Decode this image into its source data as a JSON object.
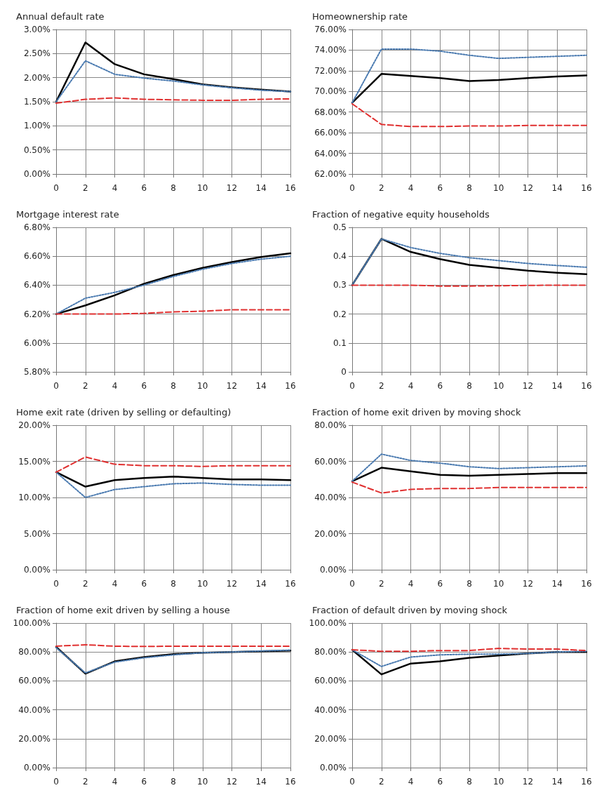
{
  "chart_data": [
    {
      "type": "line",
      "title": "Annual default rate",
      "x": [
        0,
        2,
        4,
        6,
        8,
        10,
        12,
        14,
        16
      ],
      "xlim": [
        0,
        16
      ],
      "xticks": [
        0,
        2,
        4,
        6,
        8,
        10,
        12,
        14,
        16
      ],
      "ylim": [
        0,
        3
      ],
      "yticks": [
        {
          "value": 0,
          "label": "0.00%"
        },
        {
          "value": 0.5,
          "label": "0.50%"
        },
        {
          "value": 1,
          "label": "1.00%"
        },
        {
          "value": 1.5,
          "label": "1.50%"
        },
        {
          "value": 2,
          "label": "2.00%"
        },
        {
          "value": 2.5,
          "label": "2.50%"
        },
        {
          "value": 3,
          "label": "3.00%"
        }
      ],
      "grid": true,
      "marker": "none",
      "series": [
        {
          "color": "#000000",
          "line_style": "solid",
          "values": [
            1.5,
            2.73,
            2.28,
            2.07,
            1.97,
            1.86,
            1.8,
            1.75,
            1.71
          ]
        },
        {
          "color": "#4a7ab0",
          "line_style": "dotted",
          "values": [
            1.5,
            2.35,
            2.07,
            1.99,
            1.93,
            1.85,
            1.79,
            1.74,
            1.71
          ]
        },
        {
          "color": "#e03030",
          "line_style": "dashed",
          "values": [
            1.47,
            1.55,
            1.58,
            1.55,
            1.54,
            1.53,
            1.53,
            1.55,
            1.56
          ]
        }
      ]
    },
    {
      "type": "line",
      "title": "Homeownership rate",
      "x": [
        0,
        2,
        4,
        6,
        8,
        10,
        12,
        14,
        16
      ],
      "xlim": [
        0,
        16
      ],
      "xticks": [
        0,
        2,
        4,
        6,
        8,
        10,
        12,
        14,
        16
      ],
      "ylim": [
        62,
        76
      ],
      "yticks": [
        {
          "value": 62,
          "label": "62.00%"
        },
        {
          "value": 64,
          "label": "64.00%"
        },
        {
          "value": 66,
          "label": "66.00%"
        },
        {
          "value": 68,
          "label": "68.00%"
        },
        {
          "value": 70,
          "label": "70.00%"
        },
        {
          "value": 72,
          "label": "72.00%"
        },
        {
          "value": 74,
          "label": "74.00%"
        },
        {
          "value": 76,
          "label": "76.00%"
        }
      ],
      "grid": true,
      "marker": "none",
      "series": [
        {
          "color": "#000000",
          "line_style": "solid",
          "values": [
            68.9,
            71.7,
            71.5,
            71.3,
            71.0,
            71.1,
            71.3,
            71.45,
            71.55
          ]
        },
        {
          "color": "#4a7ab0",
          "line_style": "dotted",
          "values": [
            68.9,
            74.1,
            74.1,
            73.9,
            73.5,
            73.2,
            73.3,
            73.4,
            73.5
          ]
        },
        {
          "color": "#e03030",
          "line_style": "dashed",
          "values": [
            68.8,
            66.8,
            66.6,
            66.6,
            66.65,
            66.65,
            66.7,
            66.7,
            66.7
          ]
        }
      ]
    },
    {
      "type": "line",
      "title": "Mortgage interest rate",
      "x": [
        0,
        2,
        4,
        6,
        8,
        10,
        12,
        14,
        16
      ],
      "xlim": [
        0,
        16
      ],
      "xticks": [
        0,
        2,
        4,
        6,
        8,
        10,
        12,
        14,
        16
      ],
      "ylim": [
        5.8,
        6.8
      ],
      "yticks": [
        {
          "value": 5.8,
          "label": "5.80%"
        },
        {
          "value": 6,
          "label": "6.00%"
        },
        {
          "value": 6.2,
          "label": "6.20%"
        },
        {
          "value": 6.4,
          "label": "6.40%"
        },
        {
          "value": 6.6,
          "label": "6.60%"
        },
        {
          "value": 6.8,
          "label": "6.80%"
        }
      ],
      "grid": true,
      "marker": "none",
      "series": [
        {
          "color": "#000000",
          "line_style": "solid",
          "values": [
            6.2,
            6.26,
            6.33,
            6.41,
            6.47,
            6.52,
            6.56,
            6.595,
            6.62
          ]
        },
        {
          "color": "#4a7ab0",
          "line_style": "dotted",
          "values": [
            6.2,
            6.31,
            6.35,
            6.4,
            6.46,
            6.51,
            6.55,
            6.58,
            6.6
          ]
        },
        {
          "color": "#e03030",
          "line_style": "dashed",
          "values": [
            6.2,
            6.2,
            6.2,
            6.205,
            6.215,
            6.22,
            6.23,
            6.23,
            6.23
          ]
        }
      ]
    },
    {
      "type": "line",
      "title": "Fraction of negative equity households",
      "x": [
        0,
        2,
        4,
        6,
        8,
        10,
        12,
        14,
        16
      ],
      "xlim": [
        0,
        16
      ],
      "xticks": [
        0,
        2,
        4,
        6,
        8,
        10,
        12,
        14,
        16
      ],
      "ylim": [
        0,
        0.5
      ],
      "yticks": [
        0,
        0.1,
        0.2,
        0.3,
        0.4,
        0.5
      ],
      "grid": true,
      "marker": "none",
      "series": [
        {
          "color": "#000000",
          "line_style": "solid",
          "values": [
            0.3,
            0.46,
            0.415,
            0.39,
            0.37,
            0.36,
            0.35,
            0.343,
            0.338
          ]
        },
        {
          "color": "#4a7ab0",
          "line_style": "dotted",
          "values": [
            0.3,
            0.46,
            0.43,
            0.41,
            0.395,
            0.385,
            0.375,
            0.368,
            0.362
          ]
        },
        {
          "color": "#e03030",
          "line_style": "dashed",
          "values": [
            0.3,
            0.3,
            0.3,
            0.297,
            0.297,
            0.298,
            0.299,
            0.3,
            0.3
          ]
        }
      ]
    },
    {
      "type": "line",
      "title": "Home exit rate (driven by selling or defaulting)",
      "x": [
        0,
        2,
        4,
        6,
        8,
        10,
        12,
        14,
        16
      ],
      "xlim": [
        0,
        16
      ],
      "xticks": [
        0,
        2,
        4,
        6,
        8,
        10,
        12,
        14,
        16
      ],
      "ylim": [
        0,
        20
      ],
      "yticks": [
        {
          "value": 0,
          "label": "0.00%"
        },
        {
          "value": 5,
          "label": "5.00%"
        },
        {
          "value": 10,
          "label": "10.00%"
        },
        {
          "value": 15,
          "label": "15.00%"
        },
        {
          "value": 20,
          "label": "20.00%"
        }
      ],
      "grid": true,
      "marker": "none",
      "series": [
        {
          "color": "#000000",
          "line_style": "solid",
          "values": [
            13.5,
            11.5,
            12.4,
            12.7,
            12.9,
            12.7,
            12.5,
            12.5,
            12.4
          ]
        },
        {
          "color": "#4a7ab0",
          "line_style": "dotted",
          "values": [
            13.5,
            10.0,
            11.1,
            11.5,
            11.9,
            12.0,
            11.8,
            11.7,
            11.7
          ]
        },
        {
          "color": "#e03030",
          "line_style": "dashed",
          "values": [
            13.5,
            15.6,
            14.6,
            14.4,
            14.4,
            14.3,
            14.4,
            14.4,
            14.4
          ]
        }
      ]
    },
    {
      "type": "line",
      "title": "Fraction of home exit driven by moving shock",
      "x": [
        0,
        2,
        4,
        6,
        8,
        10,
        12,
        14,
        16
      ],
      "xlim": [
        0,
        16
      ],
      "xticks": [
        0,
        2,
        4,
        6,
        8,
        10,
        12,
        14,
        16
      ],
      "ylim": [
        0,
        80
      ],
      "yticks": [
        {
          "value": 0,
          "label": "0.00%"
        },
        {
          "value": 20,
          "label": "20.00%"
        },
        {
          "value": 40,
          "label": "40.00%"
        },
        {
          "value": 60,
          "label": "60.00%"
        },
        {
          "value": 80,
          "label": "80.00%"
        }
      ],
      "grid": true,
      "marker": "none",
      "series": [
        {
          "color": "#000000",
          "line_style": "solid",
          "values": [
            49,
            56.5,
            54.5,
            52.5,
            52,
            52.5,
            53,
            53.5,
            53.5
          ]
        },
        {
          "color": "#4a7ab0",
          "line_style": "dotted",
          "values": [
            49,
            64,
            60.5,
            59,
            57,
            56,
            56.5,
            57,
            57.5
          ]
        },
        {
          "color": "#e03030",
          "line_style": "dashed",
          "values": [
            48.5,
            42.5,
            44.5,
            45,
            45,
            45.5,
            45.5,
            45.5,
            45.5
          ]
        }
      ]
    },
    {
      "type": "line",
      "title": "Fraction of home exit driven by selling a house",
      "x": [
        0,
        2,
        4,
        6,
        8,
        10,
        12,
        14,
        16
      ],
      "xlim": [
        0,
        16
      ],
      "xticks": [
        0,
        2,
        4,
        6,
        8,
        10,
        12,
        14,
        16
      ],
      "ylim": [
        0,
        100
      ],
      "yticks": [
        {
          "value": 0,
          "label": "0.00%"
        },
        {
          "value": 20,
          "label": "20.00%"
        },
        {
          "value": 40,
          "label": "40.00%"
        },
        {
          "value": 60,
          "label": "60.00%"
        },
        {
          "value": 80,
          "label": "80.00%"
        },
        {
          "value": 100,
          "label": "100.00%"
        }
      ],
      "grid": true,
      "marker": "none",
      "series": [
        {
          "color": "#000000",
          "line_style": "solid",
          "values": [
            83.5,
            65,
            73.5,
            76.5,
            78.5,
            79.5,
            80,
            80.5,
            81
          ]
        },
        {
          "color": "#4a7ab0",
          "line_style": "dotted",
          "values": [
            83,
            65.5,
            73,
            76,
            78,
            79.5,
            80,
            80.7,
            81.3
          ]
        },
        {
          "color": "#e03030",
          "line_style": "dashed",
          "values": [
            84,
            85,
            84,
            83.8,
            84,
            84,
            84,
            84,
            84
          ]
        }
      ]
    },
    {
      "type": "line",
      "title": "Fraction of default driven by moving shock",
      "x": [
        0,
        2,
        4,
        6,
        8,
        10,
        12,
        14,
        16
      ],
      "xlim": [
        0,
        16
      ],
      "xticks": [
        0,
        2,
        4,
        6,
        8,
        10,
        12,
        14,
        16
      ],
      "ylim": [
        0,
        100
      ],
      "yticks": [
        {
          "value": 0,
          "label": "0.00%"
        },
        {
          "value": 20,
          "label": "20.00%"
        },
        {
          "value": 40,
          "label": "40.00%"
        },
        {
          "value": 60,
          "label": "60.00%"
        },
        {
          "value": 80,
          "label": "80.00%"
        },
        {
          "value": 100,
          "label": "100.00%"
        }
      ],
      "grid": true,
      "marker": "none",
      "series": [
        {
          "color": "#000000",
          "line_style": "solid",
          "values": [
            81.5,
            64.5,
            72,
            73.5,
            76,
            77.5,
            79,
            80,
            80
          ]
        },
        {
          "color": "#4a7ab0",
          "line_style": "dotted",
          "values": [
            81.5,
            70,
            76.5,
            78,
            78.5,
            78.5,
            79,
            80,
            80.5
          ]
        },
        {
          "color": "#e03030",
          "line_style": "dashed",
          "values": [
            81.5,
            80.5,
            80.5,
            81,
            81,
            82.5,
            82,
            82,
            81
          ]
        }
      ]
    }
  ]
}
